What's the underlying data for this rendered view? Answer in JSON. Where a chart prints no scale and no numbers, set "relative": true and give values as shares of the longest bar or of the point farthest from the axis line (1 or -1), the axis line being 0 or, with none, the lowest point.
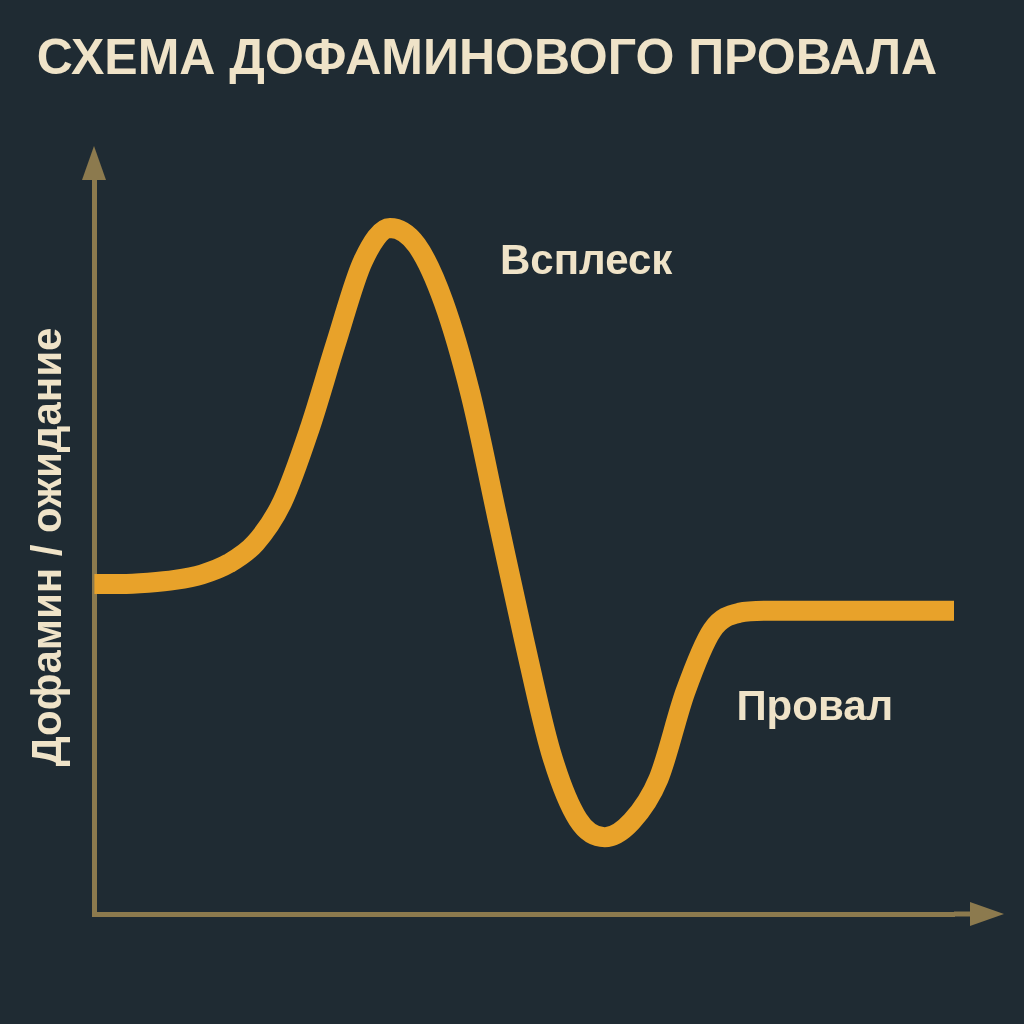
{
  "chart_data": {
    "type": "line",
    "title": "СХЕМА ДОФАМИНОВОГО ПРОВАЛА",
    "ylabel": "Дофамин / ожидание",
    "categories": [
      null,
      null,
      null,
      null,
      null,
      null,
      null,
      null,
      null,
      null,
      null,
      null,
      null,
      null,
      null,
      null,
      null,
      null,
      null,
      null,
      null,
      null,
      null,
      null,
      null,
      null,
      null,
      null,
      null,
      null,
      null,
      null,
      null
    ],
    "values": [
      0.481,
      0.481,
      0.483,
      0.487,
      0.495,
      0.511,
      0.541,
      0.601,
      0.706,
      0.833,
      0.952,
      1,
      0.975,
      0.892,
      0.758,
      0.578,
      0.399,
      0.235,
      0.138,
      0.112,
      0.135,
      0.197,
      0.324,
      0.414,
      0.439,
      0.442,
      0.442,
      0.442,
      0.442,
      0.442,
      0.442,
      0.442,
      0.442
    ],
    "color": "#e8a22a",
    "relative": true,
    "annotations": [
      "Всплеск",
      "Провал"
    ],
    "grid": false,
    "legend": false,
    "tick_labels": false,
    "marker": "none"
  }
}
